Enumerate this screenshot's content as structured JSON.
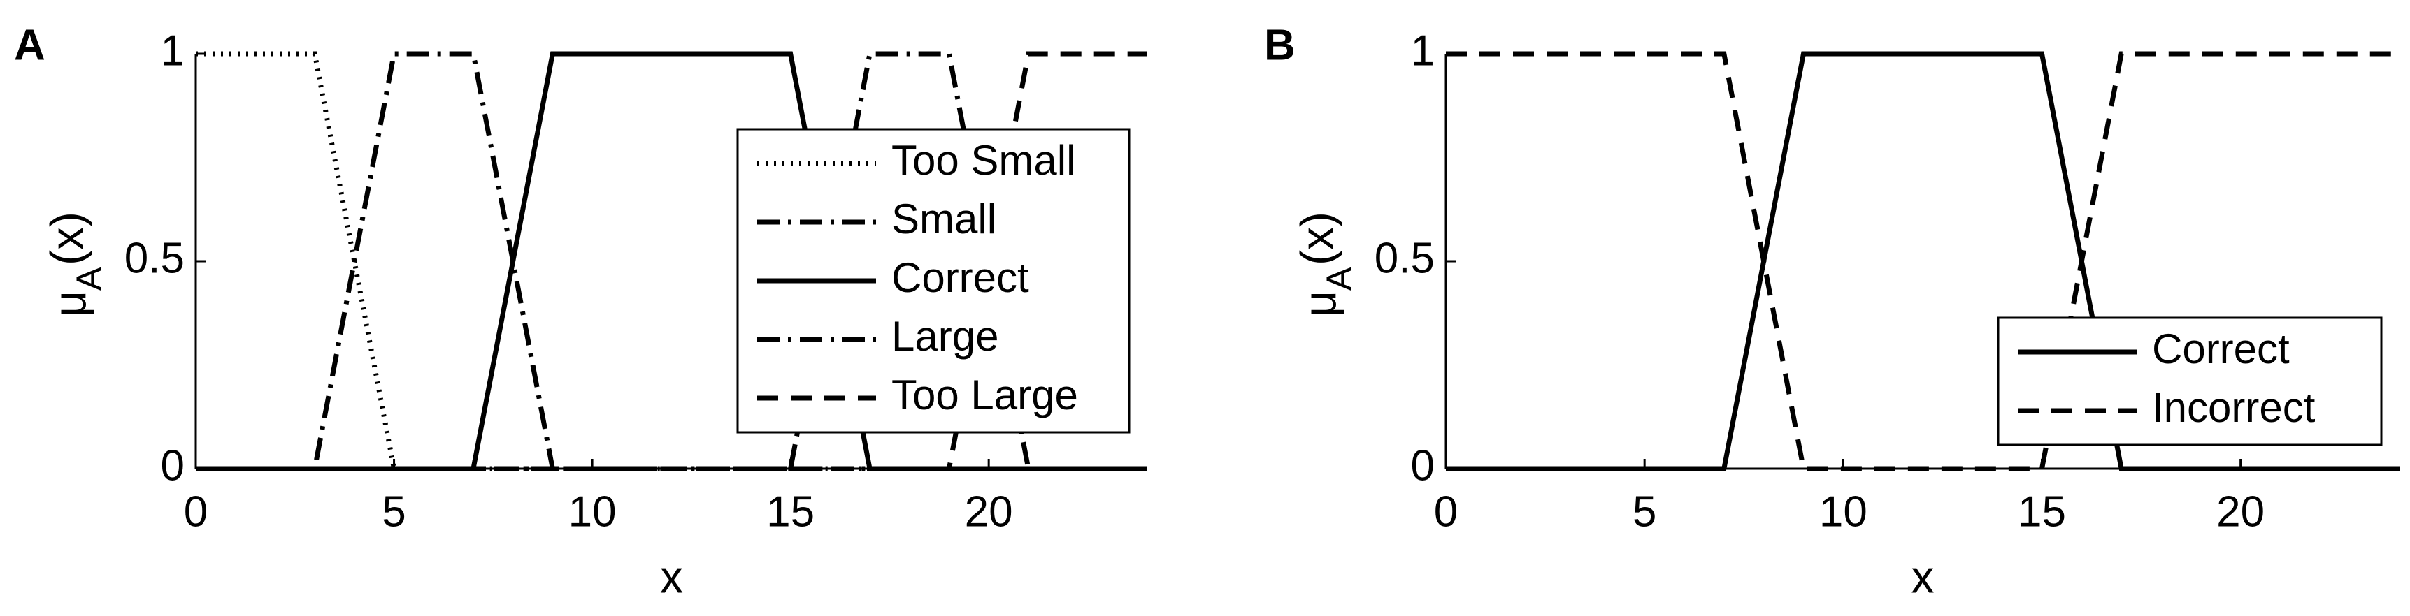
{
  "chart_data": [
    {
      "type": "line",
      "panel_label": "A",
      "xlabel": "x",
      "ylabel": "μ",
      "ylabel_subscript": "A",
      "ylabel_suffix": "(x)",
      "xlim": [
        0,
        24
      ],
      "ylim": [
        0,
        1
      ],
      "xticks": [
        0,
        5,
        10,
        15,
        20
      ],
      "yticks": [
        0,
        0.5,
        1
      ],
      "legend": "right",
      "series": [
        {
          "name": "Too Small",
          "color": "#000000",
          "dash": "dotted",
          "x": [
            0,
            3,
            5,
            24
          ],
          "values": [
            1,
            1,
            0,
            0
          ]
        },
        {
          "name": "Small",
          "color": "#000000",
          "dash": "dashdot",
          "x": [
            0,
            3,
            5,
            7,
            9,
            24
          ],
          "values": [
            0,
            0,
            1,
            1,
            0,
            0
          ]
        },
        {
          "name": "Correct",
          "color": "#000000",
          "dash": "solid",
          "x": [
            0,
            7,
            9,
            15,
            17,
            24
          ],
          "values": [
            0,
            0,
            1,
            1,
            0,
            0
          ]
        },
        {
          "name": "Large",
          "color": "#000000",
          "dash": "dashdot",
          "x": [
            0,
            15,
            17,
            19,
            21,
            24
          ],
          "values": [
            0,
            0,
            1,
            1,
            0,
            0
          ]
        },
        {
          "name": "Too Large",
          "color": "#000000",
          "dash": "dashed",
          "x": [
            0,
            19,
            21,
            24
          ],
          "values": [
            0,
            0,
            1,
            1
          ]
        }
      ]
    },
    {
      "type": "line",
      "panel_label": "B",
      "xlabel": "x",
      "ylabel": "μ",
      "ylabel_subscript": "A",
      "ylabel_suffix": "(x)",
      "xlim": [
        0,
        24
      ],
      "ylim": [
        0,
        1
      ],
      "xticks": [
        0,
        5,
        10,
        15,
        20
      ],
      "yticks": [
        0,
        0.5,
        1
      ],
      "legend": "lower right",
      "series": [
        {
          "name": "Correct",
          "color": "#000000",
          "dash": "solid",
          "x": [
            0,
            7,
            9,
            15,
            17,
            24
          ],
          "values": [
            0,
            0,
            1,
            1,
            0,
            0
          ]
        },
        {
          "name": "Incorrect",
          "color": "#000000",
          "dash": "dashed",
          "x": [
            0,
            7,
            9,
            15,
            17,
            24
          ],
          "values": [
            1,
            1,
            0,
            0,
            1,
            1
          ]
        }
      ]
    }
  ]
}
